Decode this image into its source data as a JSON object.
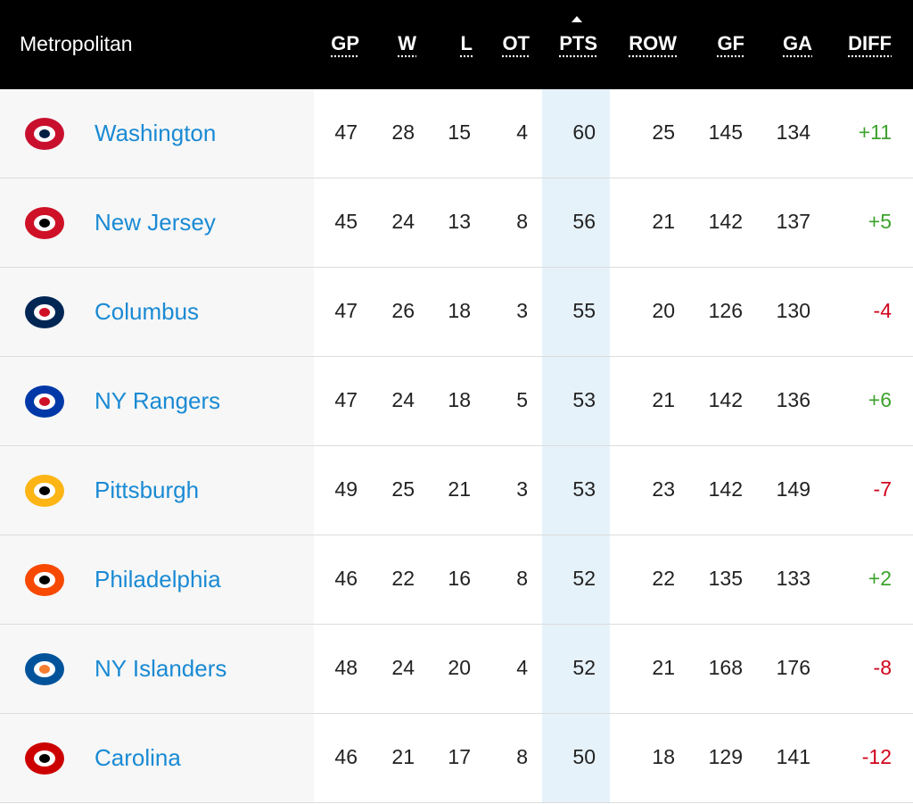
{
  "table": {
    "title": "Metropolitan",
    "columns": [
      "GP",
      "W",
      "L",
      "OT",
      "PTS",
      "ROW",
      "GF",
      "GA",
      "DIFF"
    ],
    "rows": [
      {
        "team": "Washington",
        "cells": [
          "47",
          "28",
          "15",
          "4",
          "60",
          "25",
          "145",
          "134",
          "+11"
        ]
      },
      {
        "team": "New Jersey",
        "cells": [
          "45",
          "24",
          "13",
          "8",
          "56",
          "21",
          "142",
          "137",
          "+5"
        ]
      },
      {
        "team": "Columbus",
        "cells": [
          "47",
          "26",
          "18",
          "3",
          "55",
          "20",
          "126",
          "130",
          "-4"
        ]
      },
      {
        "team": "NY Rangers",
        "cells": [
          "47",
          "24",
          "18",
          "5",
          "53",
          "21",
          "142",
          "136",
          "+6"
        ]
      },
      {
        "team": "Pittsburgh",
        "cells": [
          "49",
          "25",
          "21",
          "3",
          "53",
          "23",
          "142",
          "149",
          "-7"
        ]
      },
      {
        "team": "Philadelphia",
        "cells": [
          "46",
          "22",
          "16",
          "8",
          "52",
          "22",
          "135",
          "133",
          "+2"
        ]
      },
      {
        "team": "NY Islanders",
        "cells": [
          "48",
          "24",
          "20",
          "4",
          "52",
          "21",
          "168",
          "176",
          "-8"
        ]
      },
      {
        "team": "Carolina",
        "cells": [
          "46",
          "21",
          "17",
          "8",
          "50",
          "18",
          "129",
          "141",
          "-12"
        ]
      }
    ]
  }
}
